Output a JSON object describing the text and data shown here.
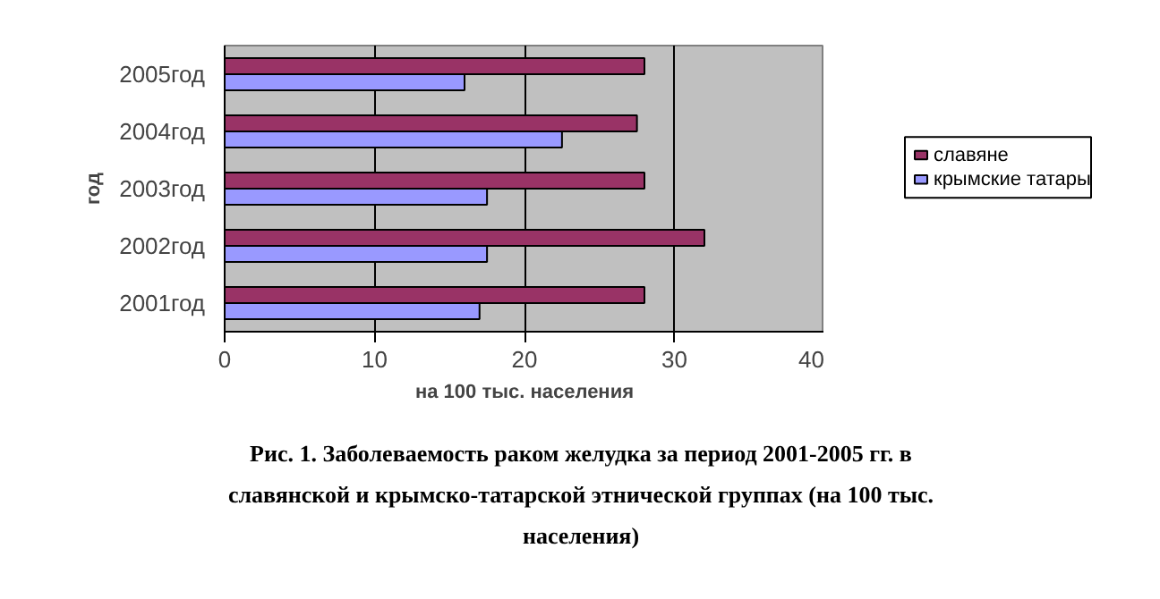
{
  "chart_data": {
    "type": "bar",
    "orientation": "horizontal",
    "title": "Рис. 1. Заболеваемость раком желудка за период 2001-2005 гг. в славянской и крымско-татарской этнической группах (на 100 тыс. населения)",
    "xlabel": "на 100 тыс. населения",
    "ylabel": "год",
    "categories": [
      "2005год",
      "2004год",
      "2003год",
      "2002год",
      "2001год"
    ],
    "series": [
      {
        "name": "славяне",
        "color": "#993366",
        "values": [
          28,
          27.5,
          28,
          32,
          28
        ]
      },
      {
        "name": "крымские татары",
        "color": "#9999ff",
        "values": [
          16,
          22.5,
          17.5,
          17.5,
          17
        ]
      }
    ],
    "xlim": [
      0,
      40
    ],
    "xticks": [
      0,
      10,
      20,
      30,
      40
    ],
    "grid": "x",
    "legend": "right"
  }
}
